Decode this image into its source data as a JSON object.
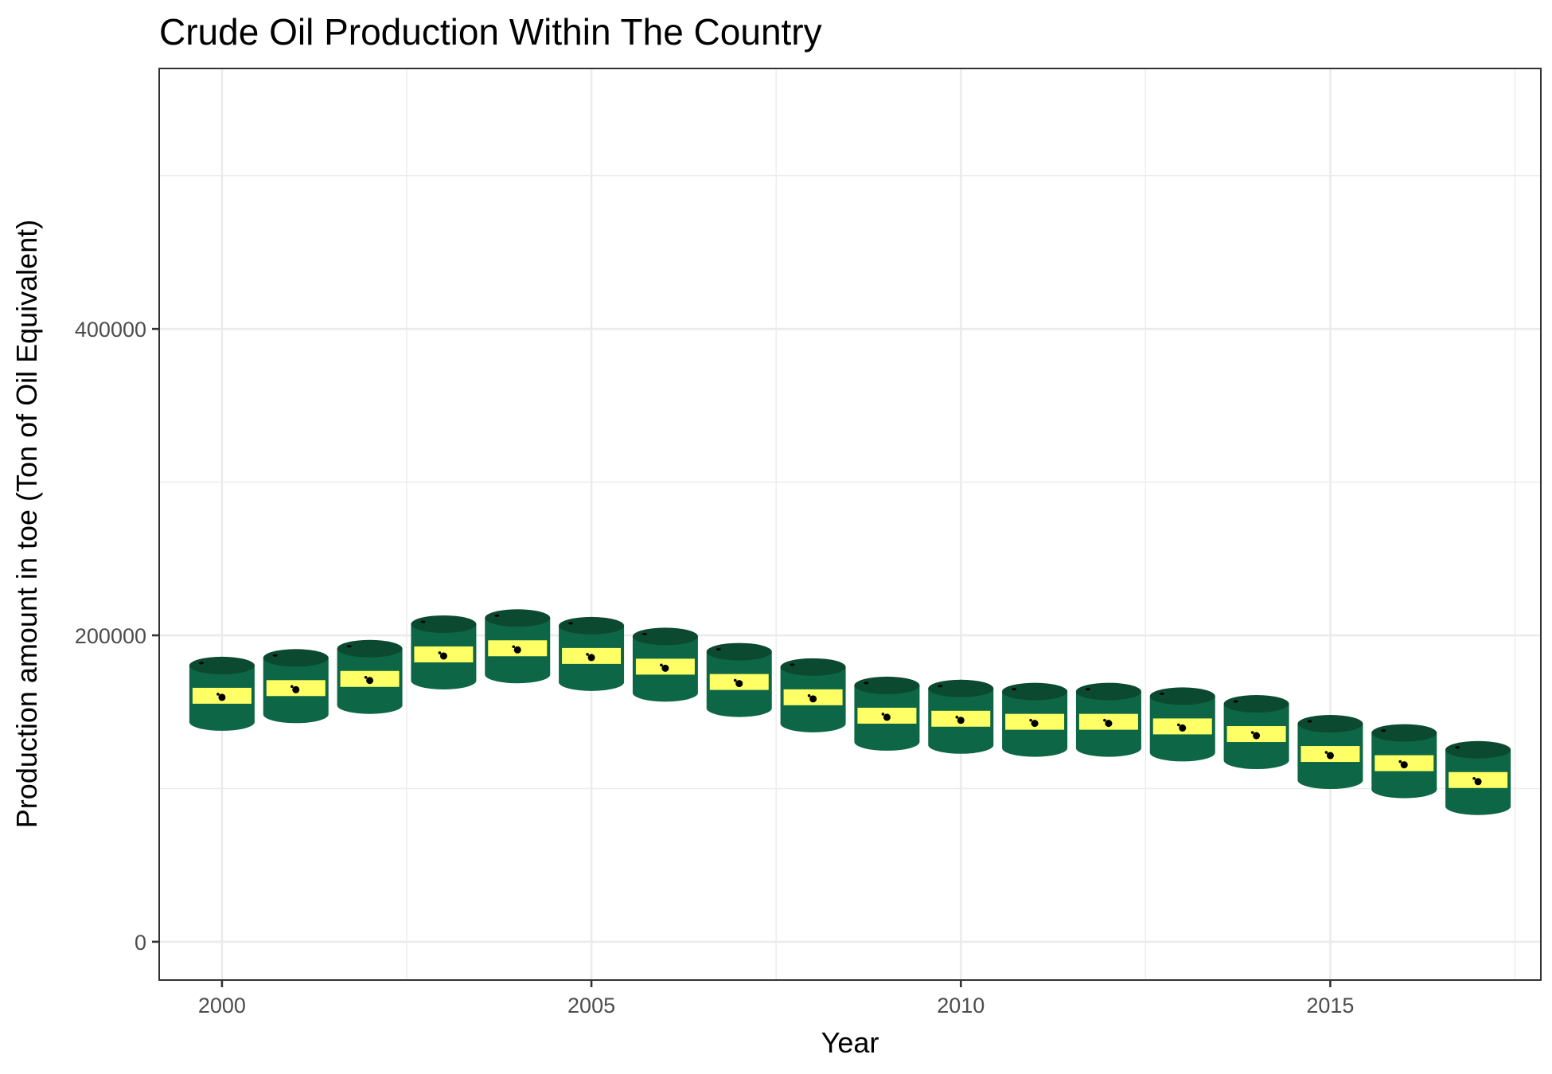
{
  "chart_data": {
    "type": "scatter",
    "title": "Crude Oil Production Within The Country",
    "xlabel": "Year",
    "ylabel": "Production amount in toe (Ton of Oil Equivalent)",
    "x": [
      2000,
      2001,
      2002,
      2003,
      2004,
      2005,
      2006,
      2007,
      2008,
      2009,
      2010,
      2011,
      2012,
      2013,
      2014,
      2015,
      2016,
      2017
    ],
    "values": [
      159000,
      164000,
      170000,
      186000,
      190000,
      185000,
      178000,
      168000,
      158000,
      146000,
      144000,
      142000,
      142000,
      139000,
      134000,
      121000,
      115000,
      104000
    ],
    "xlim": [
      1999.15,
      2017.85
    ],
    "ylim": [
      -25000,
      570000
    ],
    "x_ticks": [
      "2000",
      "2005",
      "2010",
      "2015"
    ],
    "y_ticks": [
      "0",
      "200000",
      "400000"
    ],
    "marker": "oil-barrel",
    "colors": {
      "barrel_body": "#0d6645",
      "barrel_top": "#0b4a30",
      "barrel_label": "#ffff66",
      "drop": "#000000"
    },
    "grid": true,
    "legend": "none"
  }
}
